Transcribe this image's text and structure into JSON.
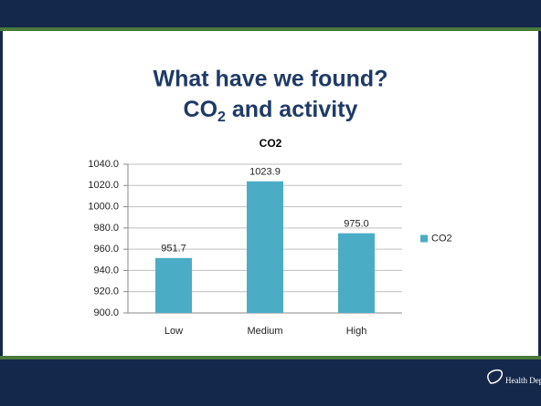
{
  "header": {
    "title_line1": "What have we found?",
    "title_line2": {
      "main": "CO",
      "sub": "2",
      "rest": " and activity"
    }
  },
  "chart_data": {
    "type": "bar",
    "title": "CO2",
    "categories": [
      "Low",
      "Medium",
      "High"
    ],
    "series": [
      {
        "name": "CO2",
        "color": "#4bacc6",
        "values": [
          951.7,
          1023.9,
          975.0
        ],
        "value_labels": [
          "951.7",
          "1023.9",
          "975.0"
        ]
      }
    ],
    "ylim": [
      900,
      1040
    ],
    "yticks": [
      {
        "value": 900,
        "label": "900.0"
      },
      {
        "value": 920,
        "label": "920.0"
      },
      {
        "value": 940,
        "label": "940.0"
      },
      {
        "value": 960,
        "label": "960.0"
      },
      {
        "value": 980,
        "label": "980.0"
      },
      {
        "value": 1000,
        "label": "1000.0"
      },
      {
        "value": 1020,
        "label": "1020.0"
      },
      {
        "value": 1040,
        "label": "1040.0"
      }
    ],
    "grid": true,
    "legend": "right"
  },
  "footer": {
    "logo": "Health Department"
  }
}
